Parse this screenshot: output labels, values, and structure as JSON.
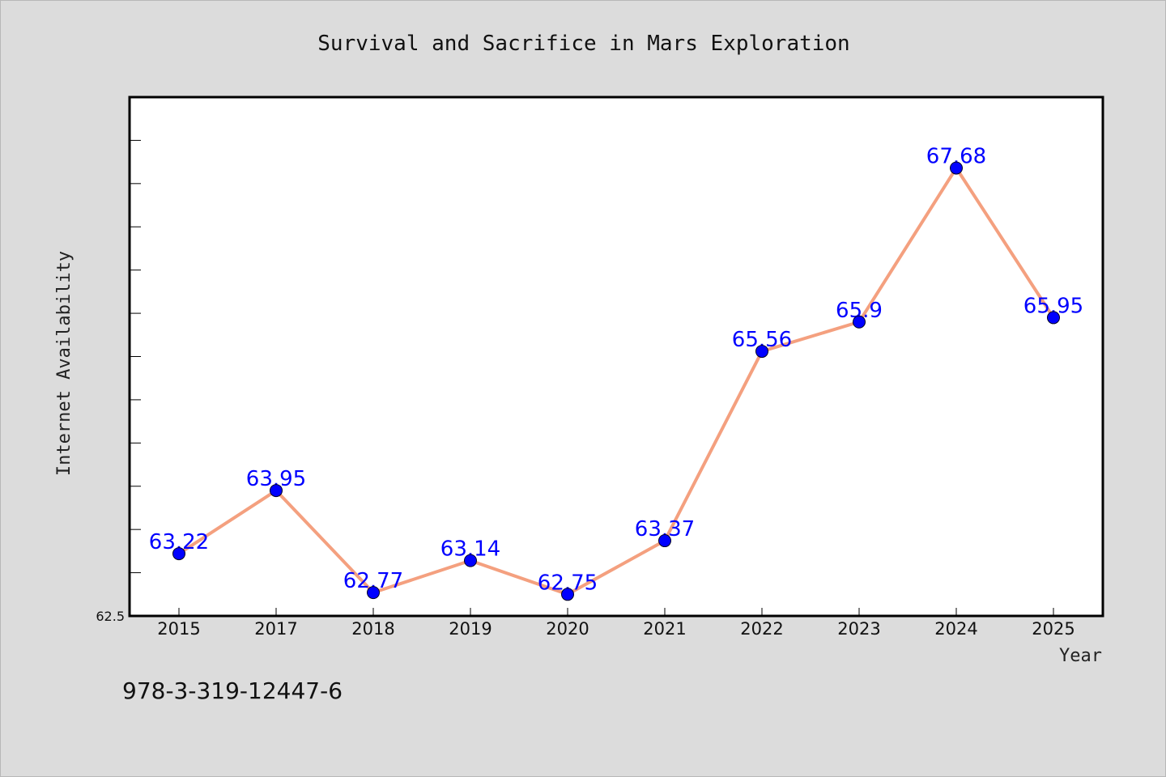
{
  "chart_data": {
    "type": "line",
    "title": "Survival and Sacrifice in Mars Exploration",
    "xlabel": "Year",
    "ylabel": "Internet Availability",
    "categories": [
      "2015",
      "2017",
      "2018",
      "2019",
      "2020",
      "2021",
      "2022",
      "2023",
      "2024",
      "2025"
    ],
    "series": [
      {
        "values": [
          63.22,
          63.95,
          62.77,
          63.14,
          62.75,
          63.37,
          65.56,
          65.9,
          67.68,
          65.95
        ],
        "labels": [
          "63.22",
          "63.95",
          "62.77",
          "63.14",
          "62.75",
          "63.37",
          "65.56",
          "65.9",
          "67.68",
          "65.95"
        ],
        "line_color": "#f4a07f",
        "marker_color": "#0000ff"
      }
    ],
    "ylim": [
      62.5,
      68.5
    ],
    "ytick_labels": [
      "62.5"
    ],
    "grid": false,
    "legend": "none"
  },
  "footnote": "978-3-319-12447-6",
  "colors": {
    "background": "#dcdcdc",
    "plot_background": "#ffffff",
    "line": "#f4a07f",
    "marker": "#0000ff",
    "data_label": "#0000ff"
  }
}
